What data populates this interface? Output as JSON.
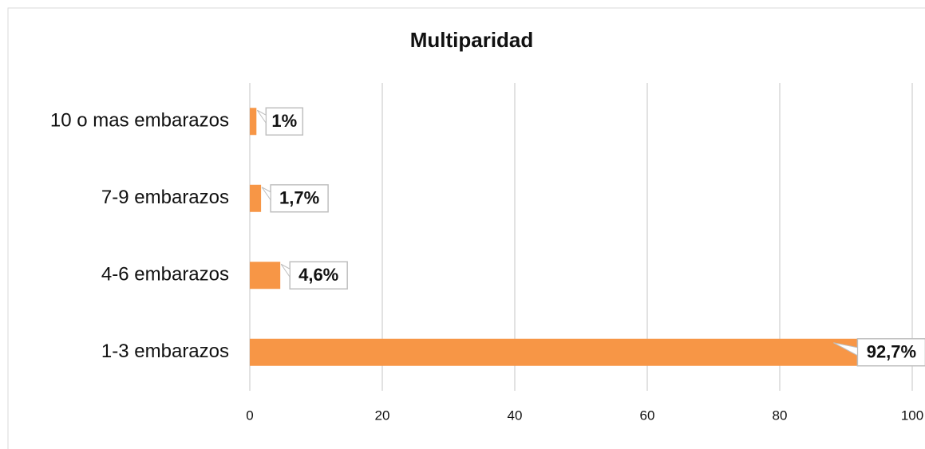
{
  "chart_data": {
    "type": "hbar",
    "title": "Multiparidad",
    "categories": [
      "10 o mas embarazos",
      "7-9 embarazos",
      "4-6 embarazos",
      "1-3 embarazos"
    ],
    "values": [
      1,
      1.7,
      4.6,
      92.7
    ],
    "value_labels": [
      "1%",
      "1,7%",
      "4,6%",
      "92,7%"
    ],
    "color": "#f79646",
    "xlim": [
      0,
      100
    ],
    "xticks": [
      0,
      20,
      40,
      60,
      80,
      100
    ],
    "grid": true
  }
}
